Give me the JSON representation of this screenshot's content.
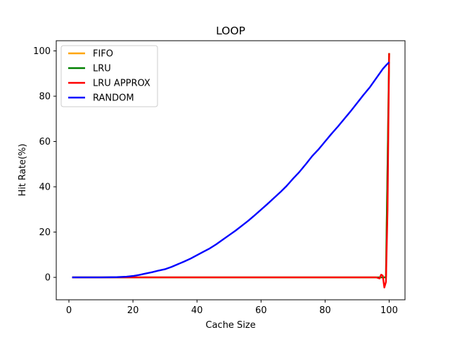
{
  "chart_data": {
    "type": "line",
    "title": "LOOP",
    "xlabel": "Cache Size",
    "ylabel": "Hit Rate(%)",
    "xlim": [
      -3.95,
      104.95
    ],
    "ylim": [
      -9.9,
      104.5
    ],
    "xticks": [
      0,
      20,
      40,
      60,
      80,
      100
    ],
    "yticks": [
      0,
      20,
      40,
      60,
      80,
      100
    ],
    "grid": false,
    "legend_position": "top-left",
    "series": [
      {
        "name": "FIFO",
        "color": "#ffa500",
        "points": [
          [
            1,
            0
          ],
          [
            95,
            0
          ],
          [
            96,
            0
          ],
          [
            97,
            0
          ],
          [
            98,
            0
          ],
          [
            99,
            0
          ],
          [
            100,
            99
          ]
        ]
      },
      {
        "name": "LRU",
        "color": "#008000",
        "points": [
          [
            1,
            0
          ],
          [
            95,
            0
          ],
          [
            96,
            0
          ],
          [
            97,
            0
          ],
          [
            98,
            0
          ],
          [
            99,
            0
          ],
          [
            100,
            99
          ]
        ]
      },
      {
        "name": "LRU APPROX",
        "color": "#ff0000",
        "points": [
          [
            1,
            0
          ],
          [
            95,
            0
          ],
          [
            96,
            0
          ],
          [
            97,
            -0.5
          ],
          [
            97.5,
            1.2
          ],
          [
            98,
            0.8
          ],
          [
            98.5,
            -4.5
          ],
          [
            99,
            -2
          ],
          [
            99.5,
            30
          ],
          [
            100,
            99
          ]
        ]
      },
      {
        "name": "RANDOM",
        "color": "#0000ff",
        "points": [
          [
            1,
            0
          ],
          [
            10,
            0
          ],
          [
            15,
            0.1
          ],
          [
            18,
            0.3
          ],
          [
            20,
            0.6
          ],
          [
            22,
            1.1
          ],
          [
            24,
            1.7
          ],
          [
            26,
            2.3
          ],
          [
            28,
            3.0
          ],
          [
            30,
            3.6
          ],
          [
            32,
            4.6
          ],
          [
            34,
            5.8
          ],
          [
            36,
            7.0
          ],
          [
            38,
            8.3
          ],
          [
            40,
            9.8
          ],
          [
            42,
            11.3
          ],
          [
            44,
            12.8
          ],
          [
            46,
            14.6
          ],
          [
            48,
            16.6
          ],
          [
            50,
            18.6
          ],
          [
            52,
            20.6
          ],
          [
            54,
            22.8
          ],
          [
            56,
            25.0
          ],
          [
            58,
            27.4
          ],
          [
            60,
            29.9
          ],
          [
            62,
            32.4
          ],
          [
            64,
            35.0
          ],
          [
            66,
            37.6
          ],
          [
            68,
            40.4
          ],
          [
            70,
            43.6
          ],
          [
            72,
            46.6
          ],
          [
            74,
            50.0
          ],
          [
            76,
            53.6
          ],
          [
            78,
            56.6
          ],
          [
            80,
            60.0
          ],
          [
            82,
            63.4
          ],
          [
            84,
            66.6
          ],
          [
            86,
            70.0
          ],
          [
            88,
            73.4
          ],
          [
            90,
            77.0
          ],
          [
            92,
            80.6
          ],
          [
            94,
            84.0
          ],
          [
            96,
            88.0
          ],
          [
            98,
            92.0
          ],
          [
            99,
            93.6
          ],
          [
            100,
            95.0
          ]
        ]
      }
    ]
  }
}
